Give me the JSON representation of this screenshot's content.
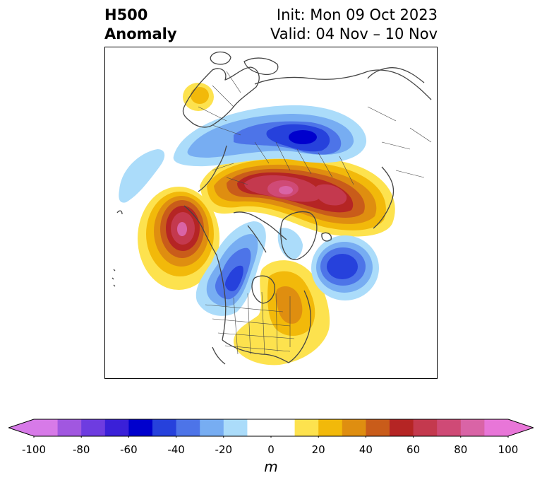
{
  "title": {
    "left_line1": "H500",
    "left_line2": "Anomaly",
    "right_line1": "Init: Mon 09 Oct 2023",
    "right_line2": "Valid: 04 Nov – 10 Nov"
  },
  "map": {
    "projection": "north-polar-stereographic",
    "variable": "500 hPa geopotential height anomaly",
    "features": [
      {
        "name": "ridge-alaska-gulf",
        "sign": "positive",
        "peak_value": 80
      },
      {
        "name": "ridge-siberia-arctic",
        "sign": "positive",
        "peak_value": 80
      },
      {
        "name": "ridge-eastern-north-america",
        "sign": "positive",
        "peak_value": 40
      },
      {
        "name": "ridge-western-europe",
        "sign": "positive",
        "peak_value": 20
      },
      {
        "name": "trough-central-asia",
        "sign": "negative",
        "peak_value": -60
      },
      {
        "name": "trough-western-canada",
        "sign": "negative",
        "peak_value": -40
      },
      {
        "name": "trough-north-atlantic",
        "sign": "negative",
        "peak_value": -60
      },
      {
        "name": "trough-north-pacific",
        "sign": "negative",
        "peak_value": -20
      },
      {
        "name": "trough-hudson-bay",
        "sign": "negative",
        "peak_value": -20
      }
    ]
  },
  "colorbar": {
    "unit": "m",
    "min": -100,
    "max": 100,
    "step": 10,
    "extend": "both",
    "ticks": [
      "-100",
      "-80",
      "-60",
      "-40",
      "-20",
      "0",
      "20",
      "40",
      "60",
      "80",
      "100"
    ],
    "colors": [
      "#d77ae8",
      "#a157e0",
      "#6e3ce0",
      "#3a20d8",
      "#0000cd",
      "#2641dc",
      "#4d74e8",
      "#77adf2",
      "#abdcfa",
      "#ffffff",
      "#ffffff",
      "#fde24e",
      "#f2b90a",
      "#df8e10",
      "#c95c1a",
      "#b52524",
      "#c4394e",
      "#cf4a76",
      "#d964a6",
      "#e876d8"
    ],
    "extend_low_color": "#d77ae8",
    "extend_high_color": "#e876d8"
  }
}
